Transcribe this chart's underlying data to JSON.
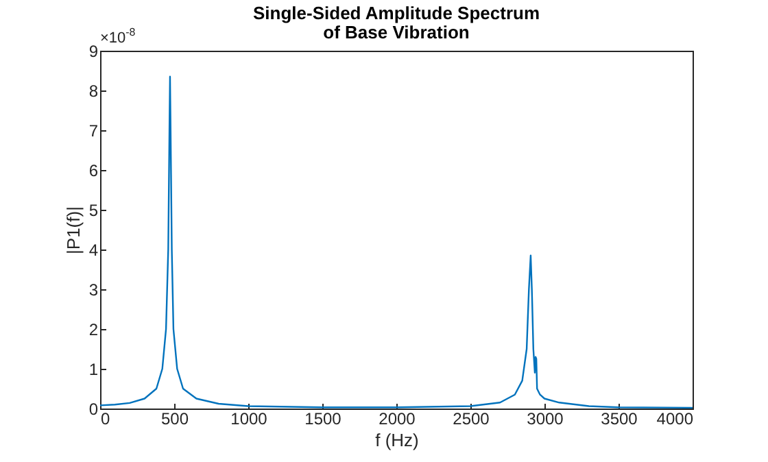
{
  "chart_data": {
    "type": "line",
    "title": "Single-Sided Amplitude Spectrum\nof Base Vibration",
    "xlabel": "f (Hz)",
    "ylabel": "|P1(f)|",
    "annotations": [
      "×10$^{-8}$"
    ],
    "x": [
      0,
      100,
      200,
      300,
      380,
      420,
      445,
      460,
      468,
      472,
      476,
      484,
      495,
      520,
      560,
      650,
      800,
      1000,
      1500,
      2000,
      2500,
      2700,
      2800,
      2850,
      2880,
      2895,
      2907,
      2915,
      2925,
      2935,
      2940,
      2945,
      2950,
      2970,
      3000,
      3100,
      3300,
      3500,
      4000
    ],
    "series": [
      {
        "color": "#0072bd",
        "values": [
          0.08,
          0.1,
          0.14,
          0.25,
          0.5,
          1.0,
          2,
          4,
          7,
          8.35,
          7,
          4,
          2,
          1.0,
          0.5,
          0.25,
          0.12,
          0.06,
          0.03,
          0.03,
          0.06,
          0.15,
          0.35,
          0.7,
          1.5,
          3,
          3.85,
          3,
          1.5,
          0.9,
          1.3,
          1.25,
          0.5,
          0.35,
          0.25,
          0.15,
          0.06,
          0.03,
          0.02
        ]
      }
    ],
    "xlim": [
      0,
      4000
    ],
    "xticks": [
      0,
      500,
      1000,
      1500,
      2000,
      2500,
      3000,
      3500,
      4000
    ],
    "ylim": [
      0,
      9
    ],
    "yticks": [
      0,
      1,
      2,
      3,
      4,
      5,
      6,
      7,
      8,
      9
    ],
    "grid": false
  }
}
